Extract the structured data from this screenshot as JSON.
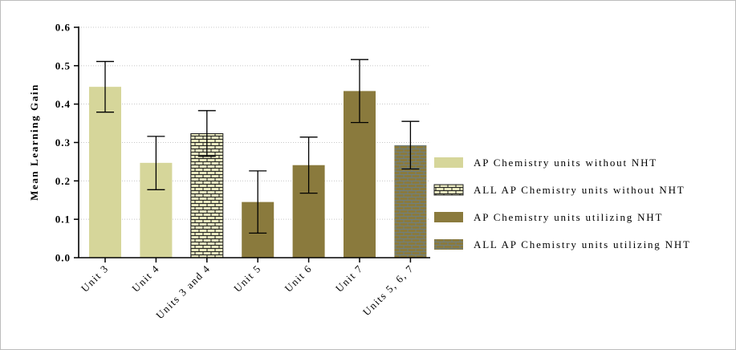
{
  "chart_data": {
    "type": "bar",
    "title": "",
    "xlabel": "",
    "ylabel": "Mean Learning Gain",
    "ylim": [
      0,
      0.6
    ],
    "yticks": [
      "0.0",
      "0.1",
      "0.2",
      "0.3",
      "0.4",
      "0.5",
      "0.6"
    ],
    "grid": "horizontal dotted",
    "legend_position": "right",
    "categories": [
      "Unit 3",
      "Unit 4",
      "Units 3 and 4",
      "Unit 5",
      "Unit 6",
      "Unit 7",
      "Units 5, 6, 7"
    ],
    "values": [
      0.445,
      0.247,
      0.323,
      0.145,
      0.241,
      0.434,
      0.293
    ],
    "error_low": [
      0.379,
      0.177,
      0.264,
      0.064,
      0.168,
      0.352,
      0.231
    ],
    "error_high": [
      0.511,
      0.316,
      0.383,
      0.226,
      0.314,
      0.516,
      0.355
    ],
    "series_index": [
      0,
      0,
      1,
      2,
      2,
      2,
      3
    ],
    "legend": [
      {
        "label": "AP Chemistry units without NHT",
        "color": "#d6d69a",
        "pattern": "solid"
      },
      {
        "label": "ALL AP Chemistry units without NHT",
        "color": "#d6d69a",
        "pattern": "brick"
      },
      {
        "label": "AP Chemistry units utilizing NHT",
        "color": "#8a7a3d",
        "pattern": "solid"
      },
      {
        "label": "ALL AP Chemistry units utilizing NHT",
        "color": "#8a7a3d",
        "pattern": "brick"
      }
    ]
  }
}
